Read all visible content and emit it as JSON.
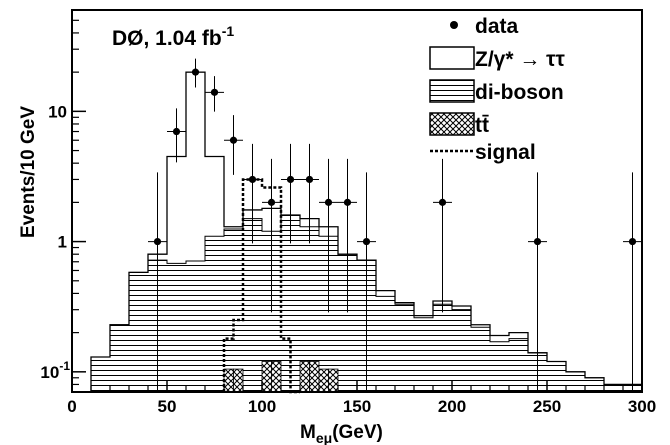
{
  "chart_data": {
    "type": "histogram",
    "annotation": {
      "main": "DØ, 1.04 fb",
      "sup": "-1"
    },
    "xlabel": {
      "main": "M",
      "sub": "eμ",
      "tail": "(GeV)"
    },
    "ylabel": "Events/10 GeV",
    "xlim": [
      0,
      300
    ],
    "ylim": [
      0.07,
      60
    ],
    "y_scale": "log",
    "xticks": [
      0,
      50,
      100,
      150,
      200,
      250,
      300
    ],
    "yticks": [
      {
        "value": 0.1,
        "base": "10",
        "sup": "-1"
      },
      {
        "value": 1,
        "base": "1",
        "sup": ""
      },
      {
        "value": 10,
        "base": "10",
        "sup": ""
      }
    ],
    "legend": {
      "position": "top-right",
      "entries": [
        {
          "key": "data",
          "label": "data",
          "style": "marker"
        },
        {
          "key": "ztautau",
          "label": "Z/γ* → ττ",
          "style": "open"
        },
        {
          "key": "diboson",
          "label": "di-boson",
          "style": "hlines"
        },
        {
          "key": "ttbar",
          "label": "tt̄",
          "style": "crosshatch"
        },
        {
          "key": "signal",
          "label": "signal",
          "style": "dotted"
        }
      ]
    },
    "bins": {
      "edges": [
        10,
        15,
        20,
        25,
        30,
        35,
        40,
        45,
        50,
        55,
        60,
        65,
        70,
        75,
        80,
        85,
        90,
        95,
        100,
        105,
        110,
        115,
        120,
        125,
        130,
        135,
        140,
        145,
        150,
        155,
        160,
        165,
        170,
        175,
        180,
        185,
        190,
        195,
        200,
        205,
        210,
        215,
        220,
        225,
        230,
        235,
        240,
        245,
        250,
        255,
        260,
        265,
        270,
        275,
        280,
        285,
        290,
        295,
        300
      ],
      "diboson_ttbar": [
        0.13,
        0.13,
        0.23,
        0.23,
        0.58,
        0.58,
        0.72,
        0.72,
        0.68,
        0.68,
        0.71,
        0.71,
        1.1,
        1.1,
        1.25,
        1.25,
        1.5,
        1.5,
        1.2,
        1.2,
        1.6,
        1.6,
        1.3,
        1.3,
        1.1,
        1.1,
        0.8,
        0.8,
        0.72,
        0.72,
        0.38,
        0.38,
        0.33,
        0.33,
        0.26,
        0.26,
        0.33,
        0.33,
        0.3,
        0.3,
        0.22,
        0.22,
        0.17,
        0.17,
        0.18,
        0.18,
        0.14,
        0.14,
        0.12,
        0.12,
        0.1,
        0.1,
        0.09,
        0.09,
        0.08,
        0.08,
        0.08,
        0.08
      ],
      "total": [
        0.13,
        0.13,
        0.23,
        0.23,
        0.58,
        0.58,
        0.8,
        0.8,
        4.5,
        4.5,
        20,
        20,
        4.5,
        4.5,
        1.3,
        1.3,
        1.75,
        1.75,
        1.8,
        1.8,
        1.6,
        1.6,
        1.5,
        1.5,
        1.3,
        1.3,
        0.8,
        0.8,
        0.72,
        0.72,
        0.42,
        0.42,
        0.34,
        0.34,
        0.27,
        0.27,
        0.35,
        0.35,
        0.32,
        0.32,
        0.23,
        0.23,
        0.19,
        0.19,
        0.2,
        0.2,
        0.14,
        0.14,
        0.12,
        0.12,
        0.1,
        0.1,
        0.09,
        0.09,
        0.08,
        0.08,
        0.08,
        0.08
      ],
      "ttbar": [
        0,
        0,
        0,
        0,
        0,
        0,
        0,
        0,
        0,
        0,
        0,
        0,
        0.07,
        0.07,
        0.105,
        0.105,
        0.07,
        0.07,
        0.12,
        0.12,
        0.07,
        0.07,
        0.12,
        0.12,
        0.105,
        0.105,
        0.07,
        0.07,
        0,
        0,
        0,
        0,
        0,
        0,
        0,
        0,
        0,
        0,
        0,
        0,
        0,
        0,
        0,
        0,
        0,
        0,
        0,
        0,
        0,
        0,
        0,
        0,
        0,
        0,
        0,
        0,
        0,
        0
      ]
    },
    "signal": {
      "edges": [
        80,
        85,
        90,
        95,
        100,
        105,
        110,
        115,
        120
      ],
      "values": [
        0.18,
        0.25,
        3.0,
        3.0,
        2.6,
        2.6,
        0.18,
        0.07
      ]
    },
    "data": {
      "points": [
        {
          "x": 45,
          "y": 1
        },
        {
          "x": 55,
          "y": 7
        },
        {
          "x": 65,
          "y": 20
        },
        {
          "x": 75,
          "y": 14
        },
        {
          "x": 85,
          "y": 6
        },
        {
          "x": 95,
          "y": 3
        },
        {
          "x": 105,
          "y": 2
        },
        {
          "x": 115,
          "y": 3
        },
        {
          "x": 125,
          "y": 3
        },
        {
          "x": 135,
          "y": 2
        },
        {
          "x": 145,
          "y": 2
        },
        {
          "x": 155,
          "y": 1
        },
        {
          "x": 195,
          "y": 2
        },
        {
          "x": 245,
          "y": 1
        },
        {
          "x": 295,
          "y": 1
        }
      ]
    },
    "grid": false
  }
}
